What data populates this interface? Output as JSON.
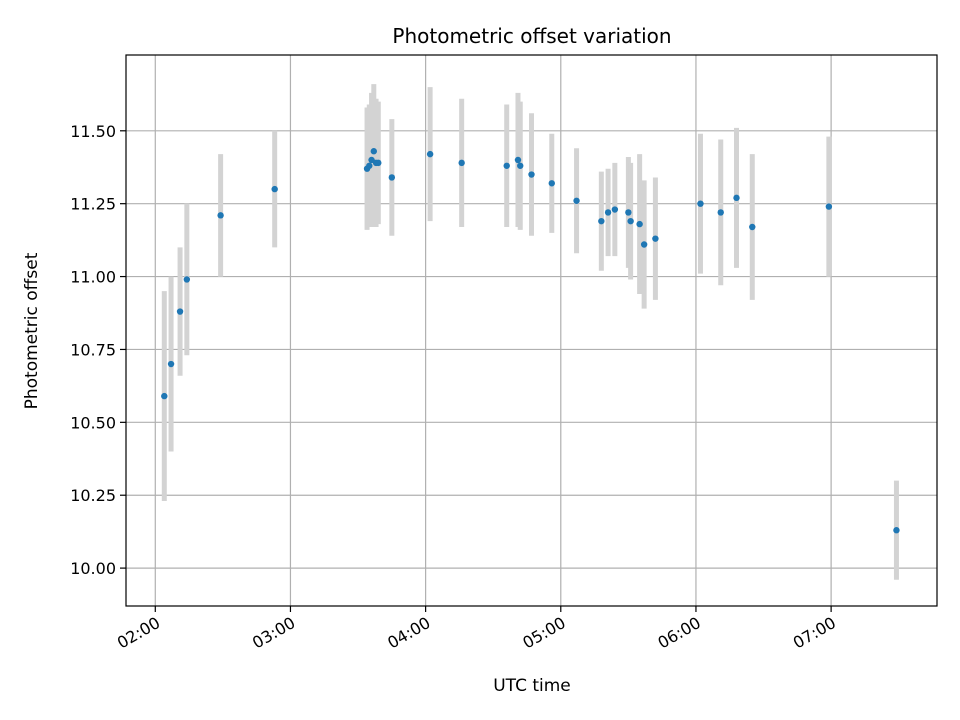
{
  "chart_data": {
    "type": "scatter",
    "title": "Photometric offset variation",
    "xlabel": "UTC time",
    "ylabel": "Photometric offset",
    "x_unit": "minutes since midnight UTC",
    "xlim": [
      "01:47",
      "07:47"
    ],
    "ylim": [
      9.87,
      11.76
    ],
    "xticks": [
      "02:00",
      "03:00",
      "04:00",
      "05:00",
      "06:00",
      "07:00"
    ],
    "yticks": [
      "10.00",
      "10.25",
      "10.50",
      "10.75",
      "11.00",
      "11.25",
      "11.50"
    ],
    "grid": true,
    "colors": {
      "point": "#1f77b4",
      "errorbar": "#d3d3d3",
      "grid": "#b0b0b0"
    },
    "series": [
      {
        "x": [
          "02:04",
          "02:07",
          "02:11",
          "02:14",
          "02:29",
          "02:53",
          "03:34",
          "03:35",
          "03:36",
          "03:37",
          "03:38",
          "03:39",
          "03:45",
          "04:02",
          "04:16",
          "04:36",
          "04:41",
          "04:42",
          "04:47",
          "04:56",
          "05:07",
          "05:18",
          "05:21",
          "05:24",
          "05:30",
          "05:31",
          "05:35",
          "05:37",
          "05:42",
          "06:02",
          "06:11",
          "06:18",
          "06:25",
          "06:59",
          "07:29"
        ],
        "y": [
          10.59,
          10.7,
          10.88,
          10.99,
          11.21,
          11.3,
          11.37,
          11.38,
          11.4,
          11.43,
          11.39,
          11.39,
          11.34,
          11.42,
          11.39,
          11.38,
          11.4,
          11.38,
          11.35,
          11.32,
          11.26,
          11.19,
          11.22,
          11.23,
          11.22,
          11.19,
          11.18,
          11.11,
          11.13,
          11.25,
          11.22,
          11.27,
          11.17,
          11.24,
          10.13
        ],
        "yerr": [
          0.36,
          0.3,
          0.22,
          0.26,
          0.21,
          0.2,
          0.21,
          0.21,
          0.23,
          0.23,
          0.22,
          0.21,
          0.2,
          0.23,
          0.22,
          0.21,
          0.23,
          0.22,
          0.21,
          0.17,
          0.18,
          0.17,
          0.15,
          0.16,
          0.19,
          0.2,
          0.24,
          0.22,
          0.21,
          0.24,
          0.25,
          0.24,
          0.25,
          0.24,
          0.17
        ]
      }
    ]
  }
}
